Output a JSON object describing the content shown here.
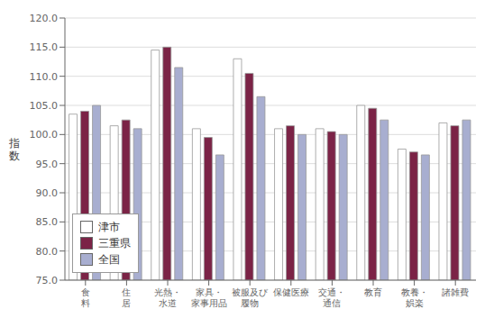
{
  "chart_data": {
    "type": "bar",
    "categories": [
      "食\n料",
      "住\n居",
      "光熱・\n水道",
      "家具・\n家事用品",
      "被服及び\n履物",
      "保健医療",
      "交通・\n通信",
      "教育",
      "教養・\n娯楽",
      "諸雑費"
    ],
    "y_label": "指\n数",
    "series": [
      {
        "name": "津市",
        "color": "#ffffff",
        "values": [
          103.5,
          101.5,
          114.5,
          101.0,
          113.0,
          101.0,
          101.0,
          105.0,
          97.5,
          102.0
        ]
      },
      {
        "name": "三重県",
        "color": "#7b2346",
        "values": [
          104.0,
          102.5,
          115.0,
          99.5,
          110.5,
          101.5,
          100.5,
          104.5,
          97.0,
          101.5
        ]
      },
      {
        "name": "全国",
        "color": "#a8aed0",
        "values": [
          105.0,
          101.0,
          111.5,
          96.5,
          106.5,
          100.0,
          100.0,
          102.5,
          96.5,
          102.5
        ]
      }
    ],
    "ylim": [
      75.0,
      120.0
    ],
    "yticks": [
      {
        "value": 75,
        "label": "75.0"
      },
      {
        "value": 80,
        "label": "80.0"
      },
      {
        "value": 85,
        "label": "85.0"
      },
      {
        "value": 90,
        "label": "90.0"
      },
      {
        "value": 95,
        "label": "95.0"
      },
      {
        "value": 100,
        "label": "100.0"
      },
      {
        "value": 105,
        "label": "105.0"
      },
      {
        "value": 110,
        "label": "110.0"
      },
      {
        "value": 115,
        "label": "115.0"
      },
      {
        "value": 120,
        "label": "120.0"
      }
    ],
    "grid": true,
    "legend": "lower left"
  }
}
